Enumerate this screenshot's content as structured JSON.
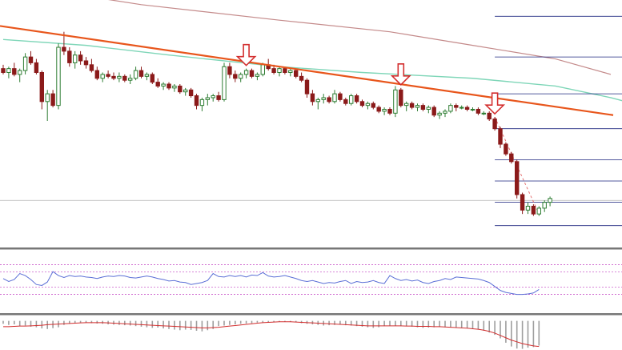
{
  "colors": {
    "background": "#ffffff",
    "bull": "#2e7d32",
    "bear": "#8b1a1a",
    "trendline": "#e8561c",
    "ma_fast": "#7fd6b8",
    "ma_slow": "#c48a8a",
    "fib_lines": "#1a237e",
    "rsi_line": "#5b6fd6",
    "rsi_levels": "#c03cc0",
    "macd_signal": "#d32f2f",
    "macd_hist": "#9e9e9e",
    "arrow": "#d32f2f",
    "panel_separator": "#777777",
    "horizontal_guide": "#b0b0b0"
  },
  "chart_data": [
    {
      "type": "candlestick",
      "title": "",
      "xlabel": "",
      "ylabel": "",
      "grid": false,
      "ylim": [
        0,
        100
      ],
      "candles": [
        {
          "o": 77,
          "h": 79,
          "l": 74,
          "c": 75
        },
        {
          "o": 75,
          "h": 78,
          "l": 72,
          "c": 77
        },
        {
          "o": 77,
          "h": 80,
          "l": 73,
          "c": 74
        },
        {
          "o": 74,
          "h": 77,
          "l": 70,
          "c": 76
        },
        {
          "o": 76,
          "h": 85,
          "l": 74,
          "c": 83
        },
        {
          "o": 83,
          "h": 86,
          "l": 79,
          "c": 80
        },
        {
          "o": 80,
          "h": 82,
          "l": 74,
          "c": 75
        },
        {
          "o": 75,
          "h": 76,
          "l": 56,
          "c": 60
        },
        {
          "o": 60,
          "h": 66,
          "l": 50,
          "c": 64
        },
        {
          "o": 64,
          "h": 66,
          "l": 57,
          "c": 58
        },
        {
          "o": 58,
          "h": 90,
          "l": 56,
          "c": 88
        },
        {
          "o": 88,
          "h": 96,
          "l": 84,
          "c": 86
        },
        {
          "o": 86,
          "h": 88,
          "l": 78,
          "c": 80
        },
        {
          "o": 80,
          "h": 86,
          "l": 77,
          "c": 84
        },
        {
          "o": 84,
          "h": 86,
          "l": 79,
          "c": 81
        },
        {
          "o": 81,
          "h": 83,
          "l": 77,
          "c": 79
        },
        {
          "o": 79,
          "h": 82,
          "l": 75,
          "c": 76
        },
        {
          "o": 76,
          "h": 78,
          "l": 71,
          "c": 72
        },
        {
          "o": 72,
          "h": 75,
          "l": 70,
          "c": 74
        },
        {
          "o": 74,
          "h": 76,
          "l": 72,
          "c": 73
        },
        {
          "o": 73,
          "h": 75,
          "l": 71,
          "c": 72
        },
        {
          "o": 72,
          "h": 75,
          "l": 70,
          "c": 73
        },
        {
          "o": 73,
          "h": 74,
          "l": 70,
          "c": 71
        },
        {
          "o": 71,
          "h": 74,
          "l": 69,
          "c": 72
        },
        {
          "o": 72,
          "h": 78,
          "l": 71,
          "c": 76
        },
        {
          "o": 76,
          "h": 78,
          "l": 72,
          "c": 73
        },
        {
          "o": 73,
          "h": 75,
          "l": 71,
          "c": 74
        },
        {
          "o": 74,
          "h": 75,
          "l": 69,
          "c": 70
        },
        {
          "o": 70,
          "h": 72,
          "l": 67,
          "c": 68
        },
        {
          "o": 68,
          "h": 70,
          "l": 66,
          "c": 69
        },
        {
          "o": 69,
          "h": 70,
          "l": 66,
          "c": 67
        },
        {
          "o": 67,
          "h": 69,
          "l": 65,
          "c": 68
        },
        {
          "o": 68,
          "h": 69,
          "l": 64,
          "c": 65
        },
        {
          "o": 65,
          "h": 67,
          "l": 63,
          "c": 66
        },
        {
          "o": 66,
          "h": 67,
          "l": 62,
          "c": 63
        },
        {
          "o": 63,
          "h": 64,
          "l": 56,
          "c": 58
        },
        {
          "o": 58,
          "h": 62,
          "l": 55,
          "c": 61
        },
        {
          "o": 61,
          "h": 64,
          "l": 58,
          "c": 62
        },
        {
          "o": 62,
          "h": 64,
          "l": 60,
          "c": 63
        },
        {
          "o": 63,
          "h": 65,
          "l": 60,
          "c": 61
        },
        {
          "o": 61,
          "h": 80,
          "l": 60,
          "c": 78
        },
        {
          "o": 78,
          "h": 80,
          "l": 72,
          "c": 74
        },
        {
          "o": 74,
          "h": 76,
          "l": 70,
          "c": 72
        },
        {
          "o": 72,
          "h": 75,
          "l": 70,
          "c": 74
        },
        {
          "o": 74,
          "h": 77,
          "l": 72,
          "c": 76
        },
        {
          "o": 76,
          "h": 77,
          "l": 72,
          "c": 73
        },
        {
          "o": 73,
          "h": 75,
          "l": 71,
          "c": 74
        },
        {
          "o": 74,
          "h": 80,
          "l": 73,
          "c": 79
        },
        {
          "o": 79,
          "h": 82,
          "l": 76,
          "c": 77
        },
        {
          "o": 77,
          "h": 79,
          "l": 74,
          "c": 75
        },
        {
          "o": 75,
          "h": 78,
          "l": 73,
          "c": 77
        },
        {
          "o": 77,
          "h": 78,
          "l": 74,
          "c": 75
        },
        {
          "o": 75,
          "h": 77,
          "l": 73,
          "c": 76
        },
        {
          "o": 76,
          "h": 77,
          "l": 72,
          "c": 73
        },
        {
          "o": 73,
          "h": 75,
          "l": 70,
          "c": 71
        },
        {
          "o": 71,
          "h": 72,
          "l": 62,
          "c": 64
        },
        {
          "o": 64,
          "h": 66,
          "l": 58,
          "c": 60
        },
        {
          "o": 60,
          "h": 62,
          "l": 56,
          "c": 61
        },
        {
          "o": 61,
          "h": 64,
          "l": 59,
          "c": 62
        },
        {
          "o": 62,
          "h": 63,
          "l": 59,
          "c": 60
        },
        {
          "o": 60,
          "h": 66,
          "l": 59,
          "c": 64
        },
        {
          "o": 64,
          "h": 65,
          "l": 60,
          "c": 61
        },
        {
          "o": 61,
          "h": 62,
          "l": 58,
          "c": 59
        },
        {
          "o": 59,
          "h": 64,
          "l": 58,
          "c": 63
        },
        {
          "o": 63,
          "h": 64,
          "l": 59,
          "c": 60
        },
        {
          "o": 60,
          "h": 61,
          "l": 57,
          "c": 58
        },
        {
          "o": 58,
          "h": 60,
          "l": 56,
          "c": 59
        },
        {
          "o": 59,
          "h": 60,
          "l": 56,
          "c": 57
        },
        {
          "o": 57,
          "h": 58,
          "l": 54,
          "c": 55
        },
        {
          "o": 55,
          "h": 57,
          "l": 53,
          "c": 56
        },
        {
          "o": 56,
          "h": 57,
          "l": 53,
          "c": 54
        },
        {
          "o": 54,
          "h": 68,
          "l": 52,
          "c": 66
        },
        {
          "o": 66,
          "h": 67,
          "l": 57,
          "c": 58
        },
        {
          "o": 58,
          "h": 60,
          "l": 55,
          "c": 59
        },
        {
          "o": 59,
          "h": 60,
          "l": 56,
          "c": 57
        },
        {
          "o": 57,
          "h": 59,
          "l": 55,
          "c": 58
        },
        {
          "o": 58,
          "h": 59,
          "l": 55,
          "c": 56
        },
        {
          "o": 56,
          "h": 58,
          "l": 54,
          "c": 57
        },
        {
          "o": 57,
          "h": 58,
          "l": 52,
          "c": 53
        },
        {
          "o": 53,
          "h": 55,
          "l": 51,
          "c": 54
        },
        {
          "o": 54,
          "h": 56,
          "l": 52,
          "c": 55
        },
        {
          "o": 55,
          "h": 59,
          "l": 54,
          "c": 58
        },
        {
          "o": 58,
          "h": 59,
          "l": 55,
          "c": 57
        },
        {
          "o": 57,
          "h": 58,
          "l": 56,
          "c": 57
        },
        {
          "o": 57,
          "h": 58,
          "l": 55,
          "c": 56
        },
        {
          "o": 56,
          "h": 57,
          "l": 55,
          "c": 56
        },
        {
          "o": 56,
          "h": 57,
          "l": 53,
          "c": 54
        },
        {
          "o": 54,
          "h": 55,
          "l": 53,
          "c": 54
        },
        {
          "o": 54,
          "h": 55,
          "l": 50,
          "c": 51
        },
        {
          "o": 51,
          "h": 52,
          "l": 45,
          "c": 46
        },
        {
          "o": 46,
          "h": 47,
          "l": 36,
          "c": 38
        },
        {
          "o": 38,
          "h": 39,
          "l": 32,
          "c": 33
        },
        {
          "o": 33,
          "h": 34,
          "l": 28,
          "c": 29
        },
        {
          "o": 29,
          "h": 30,
          "l": 10,
          "c": 12
        },
        {
          "o": 12,
          "h": 13,
          "l": 2,
          "c": 4
        },
        {
          "o": 4,
          "h": 8,
          "l": 2,
          "c": 6
        },
        {
          "o": 6,
          "h": 7,
          "l": 1,
          "c": 2
        },
        {
          "o": 2,
          "h": 6,
          "l": 1,
          "c": 5
        },
        {
          "o": 5,
          "h": 9,
          "l": 3,
          "c": 8
        },
        {
          "o": 8,
          "h": 11,
          "l": 6,
          "c": 10
        }
      ],
      "overlays": {
        "trendline": {
          "from": [
            0,
            99
          ],
          "to": [
            125,
            53
          ]
        },
        "ma_fast": [
          [
            0,
            92
          ],
          [
            15,
            89
          ],
          [
            30,
            84
          ],
          [
            50,
            78
          ],
          [
            65,
            75
          ],
          [
            85,
            72
          ],
          [
            100,
            68
          ],
          [
            110,
            62
          ],
          [
            118,
            56
          ]
        ],
        "ma_slow": [
          [
            0,
            121
          ],
          [
            25,
            110
          ],
          [
            50,
            102
          ],
          [
            70,
            96
          ],
          [
            85,
            89
          ],
          [
            100,
            82
          ],
          [
            110,
            74
          ]
        ],
        "fib_levels": [
          104,
          83,
          64,
          46,
          30,
          19,
          8,
          -4
        ],
        "guide_level": 9,
        "dashed_projection": {
          "from": [
            89,
            52
          ],
          "to": [
            97,
            2
          ]
        },
        "arrow_markers": [
          44,
          72,
          89
        ]
      }
    },
    {
      "type": "line",
      "title": "",
      "xlabel": "",
      "ylabel": "",
      "ylim": [
        0,
        100
      ],
      "levels": [
        80,
        65,
        35,
        20
      ],
      "series": [
        {
          "values": [
            52,
            46,
            50,
            62,
            58,
            50,
            40,
            38,
            45,
            66,
            58,
            54,
            58,
            56,
            57,
            55,
            54,
            52,
            55,
            57,
            56,
            58,
            57,
            54,
            53,
            55,
            57,
            55,
            52,
            50,
            47,
            48,
            45,
            44,
            40,
            42,
            44,
            48,
            62,
            56,
            55,
            58,
            56,
            58,
            55,
            59,
            58,
            64,
            57,
            55,
            56,
            58,
            55,
            52,
            48,
            46,
            48,
            45,
            42,
            44,
            43,
            46,
            48,
            42,
            46,
            44,
            45,
            48,
            44,
            42,
            58,
            52,
            48,
            50,
            47,
            49,
            44,
            42,
            46,
            48,
            52,
            50,
            55,
            54,
            53,
            52,
            51,
            48,
            44,
            36,
            28,
            24,
            22,
            20,
            20,
            21,
            23,
            30
          ]
        }
      ]
    },
    {
      "type": "bar",
      "title": "",
      "xlabel": "",
      "ylabel": "",
      "ylim": [
        -100,
        10
      ],
      "histogram": [
        -10,
        -14,
        -12,
        -18,
        -16,
        -20,
        -22,
        -26,
        -28,
        -25,
        -22,
        -14,
        -10,
        -8,
        -7,
        -6,
        -8,
        -9,
        -10,
        -12,
        -13,
        -14,
        -15,
        -16,
        -18,
        -20,
        -22,
        -24,
        -23,
        -26,
        -28,
        -30,
        -32,
        -30,
        -31,
        -34,
        -36,
        -32,
        -28,
        -18,
        -16,
        -14,
        -12,
        -10,
        -9,
        -8,
        -6,
        -5,
        -4,
        -4,
        -3,
        -3,
        -4,
        -5,
        -8,
        -10,
        -12,
        -14,
        -16,
        -15,
        -14,
        -13,
        -15,
        -16,
        -18,
        -20,
        -22,
        -24,
        -22,
        -18,
        -16,
        -17,
        -18,
        -19,
        -20,
        -22,
        -24,
        -23,
        -22,
        -21,
        -22,
        -23,
        -24,
        -25,
        -26,
        -28,
        -30,
        -34,
        -40,
        -48,
        -60,
        -75,
        -88,
        -95,
        -96,
        -92,
        -90,
        -85
      ],
      "signal": [
        -20,
        -20,
        -19,
        -18,
        -18,
        -17,
        -16,
        -15,
        -13,
        -12,
        -11,
        -10,
        -9,
        -8,
        -7,
        -6,
        -6,
        -6,
        -6,
        -7,
        -8,
        -9,
        -10,
        -11,
        -12,
        -13,
        -14,
        -15,
        -16,
        -17,
        -18,
        -19,
        -20,
        -21,
        -22,
        -23,
        -24,
        -24,
        -23,
        -22,
        -20,
        -18,
        -16,
        -14,
        -12,
        -10,
        -8,
        -6,
        -5,
        -4,
        -3,
        -3,
        -3,
        -4,
        -5,
        -6,
        -7,
        -8,
        -9,
        -10,
        -11,
        -12,
        -13,
        -14,
        -15,
        -16,
        -17,
        -17,
        -17,
        -17,
        -17,
        -17,
        -17,
        -18,
        -18,
        -19,
        -19,
        -19,
        -20,
        -20,
        -21,
        -22,
        -23,
        -24,
        -25,
        -27,
        -29,
        -32,
        -36,
        -42,
        -50,
        -58,
        -66,
        -72,
        -78,
        -82,
        -86,
        -88
      ]
    }
  ]
}
